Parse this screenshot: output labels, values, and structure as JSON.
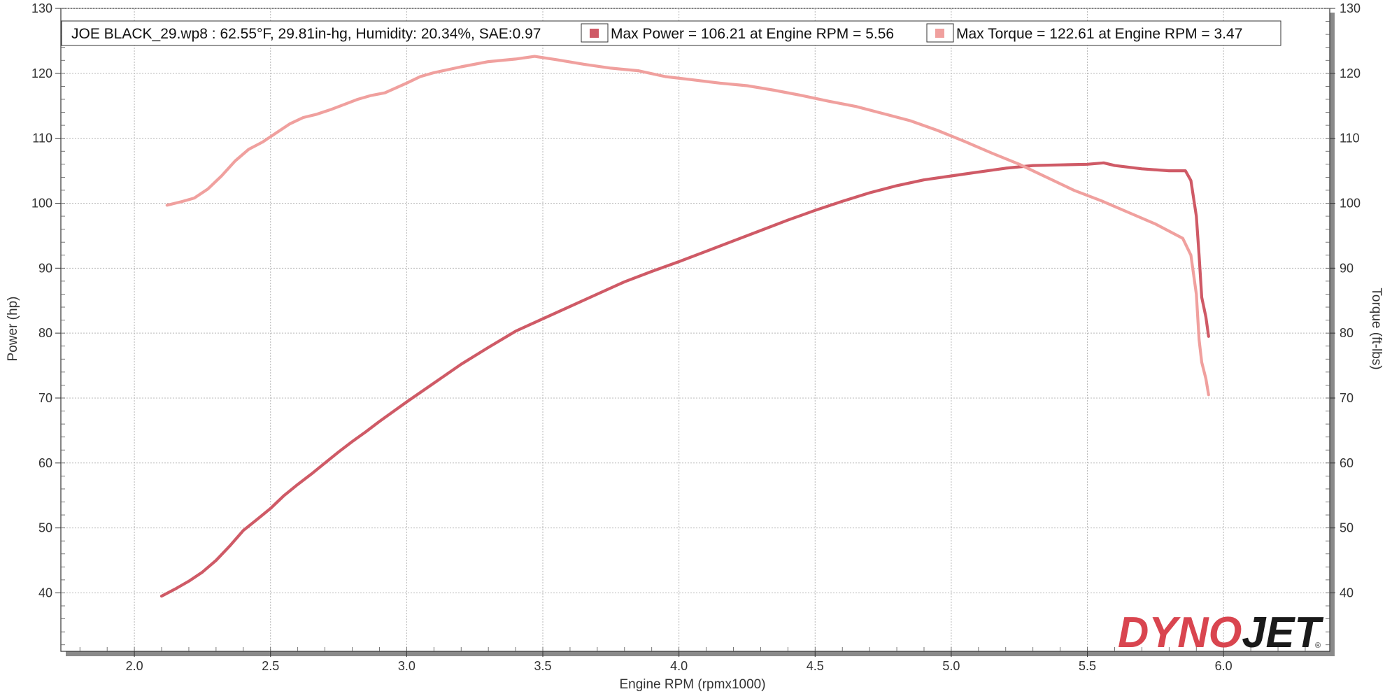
{
  "chart_data": {
    "type": "line",
    "title": "",
    "legend": {
      "placement": "top",
      "file_info": "JOE BLACK_29.wp8 : 62.55°F, 29.81in-hg, Humidity: 20.34%, SAE:0.97",
      "entries": [
        {
          "label": "Max Power = 106.21 at Engine RPM = 5.56",
          "color": "#cf5a66"
        },
        {
          "label": "Max Torque = 122.61 at Engine RPM = 3.47",
          "color": "#f0a09e"
        }
      ]
    },
    "xlabel": "Engine RPM (rpmx1000)",
    "ylabel_left": "Power (hp)",
    "ylabel_right": "Torque (ft-lbs)",
    "xlim": [
      1.73,
      6.39
    ],
    "ylim": [
      31,
      130
    ],
    "x_ticks": [
      "2.0",
      "2.5",
      "3.0",
      "3.5",
      "4.0",
      "4.5",
      "5.0",
      "5.5",
      "6.0"
    ],
    "y_ticks": [
      "40",
      "50",
      "60",
      "70",
      "80",
      "90",
      "100",
      "110",
      "120",
      "130"
    ],
    "grid": true,
    "series": [
      {
        "axis": "left",
        "color": "#cf5a66",
        "points": [
          [
            2.1,
            39.5
          ],
          [
            2.15,
            40.6
          ],
          [
            2.2,
            41.8
          ],
          [
            2.25,
            43.2
          ],
          [
            2.3,
            45.0
          ],
          [
            2.35,
            47.2
          ],
          [
            2.4,
            49.6
          ],
          [
            2.45,
            51.3
          ],
          [
            2.5,
            53.0
          ],
          [
            2.55,
            55.0
          ],
          [
            2.6,
            56.7
          ],
          [
            2.65,
            58.3
          ],
          [
            2.7,
            60.0
          ],
          [
            2.75,
            61.7
          ],
          [
            2.8,
            63.3
          ],
          [
            2.85,
            64.8
          ],
          [
            2.9,
            66.4
          ],
          [
            3.0,
            69.4
          ],
          [
            3.1,
            72.3
          ],
          [
            3.2,
            75.2
          ],
          [
            3.3,
            77.8
          ],
          [
            3.4,
            80.3
          ],
          [
            3.5,
            82.2
          ],
          [
            3.6,
            84.1
          ],
          [
            3.7,
            86.0
          ],
          [
            3.8,
            87.9
          ],
          [
            3.9,
            89.5
          ],
          [
            4.0,
            91.0
          ],
          [
            4.1,
            92.6
          ],
          [
            4.2,
            94.2
          ],
          [
            4.3,
            95.8
          ],
          [
            4.4,
            97.4
          ],
          [
            4.5,
            98.9
          ],
          [
            4.6,
            100.3
          ],
          [
            4.7,
            101.6
          ],
          [
            4.8,
            102.7
          ],
          [
            4.9,
            103.6
          ],
          [
            5.0,
            104.2
          ],
          [
            5.1,
            104.8
          ],
          [
            5.2,
            105.4
          ],
          [
            5.3,
            105.8
          ],
          [
            5.4,
            105.9
          ],
          [
            5.5,
            106.0
          ],
          [
            5.56,
            106.21
          ],
          [
            5.6,
            105.8
          ],
          [
            5.7,
            105.3
          ],
          [
            5.8,
            105.0
          ],
          [
            5.86,
            105.0
          ],
          [
            5.88,
            103.5
          ],
          [
            5.9,
            98.0
          ],
          [
            5.91,
            92.0
          ],
          [
            5.92,
            85.5
          ],
          [
            5.935,
            82.5
          ],
          [
            5.945,
            79.5
          ]
        ]
      },
      {
        "axis": "right",
        "color": "#f0a09e",
        "points": [
          [
            2.12,
            99.7
          ],
          [
            2.17,
            100.2
          ],
          [
            2.22,
            100.8
          ],
          [
            2.27,
            102.2
          ],
          [
            2.32,
            104.2
          ],
          [
            2.37,
            106.5
          ],
          [
            2.42,
            108.3
          ],
          [
            2.47,
            109.4
          ],
          [
            2.52,
            110.8
          ],
          [
            2.57,
            112.2
          ],
          [
            2.62,
            113.2
          ],
          [
            2.67,
            113.7
          ],
          [
            2.72,
            114.4
          ],
          [
            2.77,
            115.2
          ],
          [
            2.82,
            116.0
          ],
          [
            2.87,
            116.6
          ],
          [
            2.92,
            117.0
          ],
          [
            3.0,
            118.5
          ],
          [
            3.05,
            119.5
          ],
          [
            3.1,
            120.1
          ],
          [
            3.2,
            121.0
          ],
          [
            3.3,
            121.8
          ],
          [
            3.4,
            122.2
          ],
          [
            3.47,
            122.61
          ],
          [
            3.55,
            122.1
          ],
          [
            3.65,
            121.4
          ],
          [
            3.75,
            120.8
          ],
          [
            3.85,
            120.4
          ],
          [
            3.95,
            119.5
          ],
          [
            4.05,
            119.0
          ],
          [
            4.15,
            118.5
          ],
          [
            4.25,
            118.1
          ],
          [
            4.35,
            117.4
          ],
          [
            4.45,
            116.6
          ],
          [
            4.55,
            115.7
          ],
          [
            4.65,
            114.9
          ],
          [
            4.75,
            113.8
          ],
          [
            4.85,
            112.7
          ],
          [
            4.95,
            111.2
          ],
          [
            5.05,
            109.5
          ],
          [
            5.15,
            107.7
          ],
          [
            5.25,
            106.0
          ],
          [
            5.35,
            104.0
          ],
          [
            5.45,
            102.0
          ],
          [
            5.55,
            100.4
          ],
          [
            5.65,
            98.6
          ],
          [
            5.75,
            96.8
          ],
          [
            5.85,
            94.6
          ],
          [
            5.88,
            92.0
          ],
          [
            5.9,
            86.0
          ],
          [
            5.91,
            79.0
          ],
          [
            5.92,
            75.5
          ],
          [
            5.935,
            73.0
          ],
          [
            5.945,
            70.5
          ]
        ]
      }
    ]
  },
  "logo": {
    "text_a": "DYNO",
    "text_b": "JET",
    "color_a": "#d9454f",
    "color_b": "#1a1a1a"
  }
}
